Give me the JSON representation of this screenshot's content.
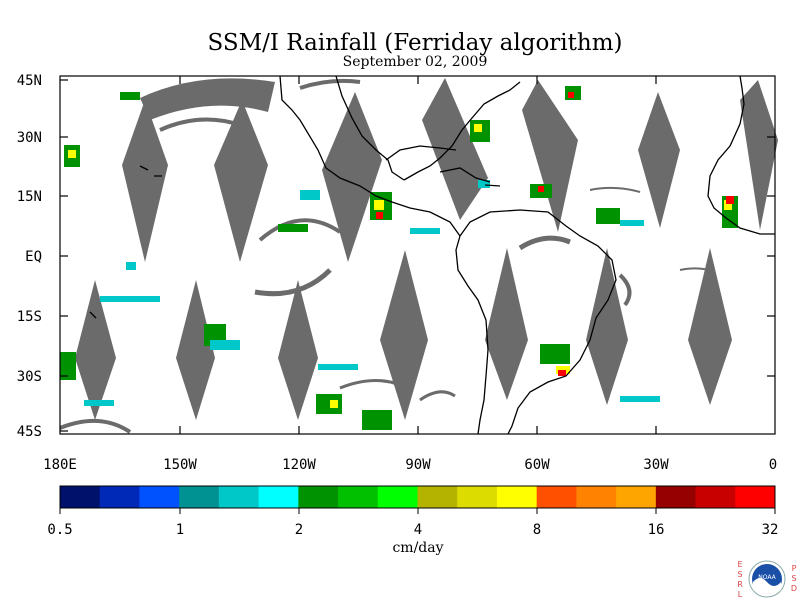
{
  "title": "SSM/I Rainfall (Ferriday algorithm)",
  "subtitle": "September 02, 2009",
  "map": {
    "lat_labels": [
      "45N",
      "30N",
      "15N",
      "EQ",
      "15S",
      "30S",
      "45S"
    ],
    "lon_labels": [
      "180E",
      "150W",
      "120W",
      "90W",
      "60W",
      "30W",
      "0"
    ],
    "lat_range": [
      -45,
      45
    ],
    "lon_range": [
      -180,
      0
    ],
    "data_gap_color": "#6b6b6b",
    "coastline_color": "#000000"
  },
  "colorbar": {
    "tick_labels": [
      "0.5",
      "1",
      "2",
      "4",
      "8",
      "16",
      "32"
    ],
    "units": "cm/day",
    "colors": [
      "#00116b",
      "#0029b8",
      "#0052ff",
      "#009292",
      "#00c8c8",
      "#00ffff",
      "#009200",
      "#00c000",
      "#00ff00",
      "#b4b400",
      "#dcdc00",
      "#ffff00",
      "#ff5000",
      "#ff8200",
      "#ffa500",
      "#960000",
      "#c80000",
      "#ff0000"
    ]
  },
  "logo": {
    "left_letters": [
      "E",
      "S",
      "R",
      "L"
    ],
    "right_letters": [
      "P",
      "S",
      "D"
    ],
    "badge_text": "NOAA"
  }
}
